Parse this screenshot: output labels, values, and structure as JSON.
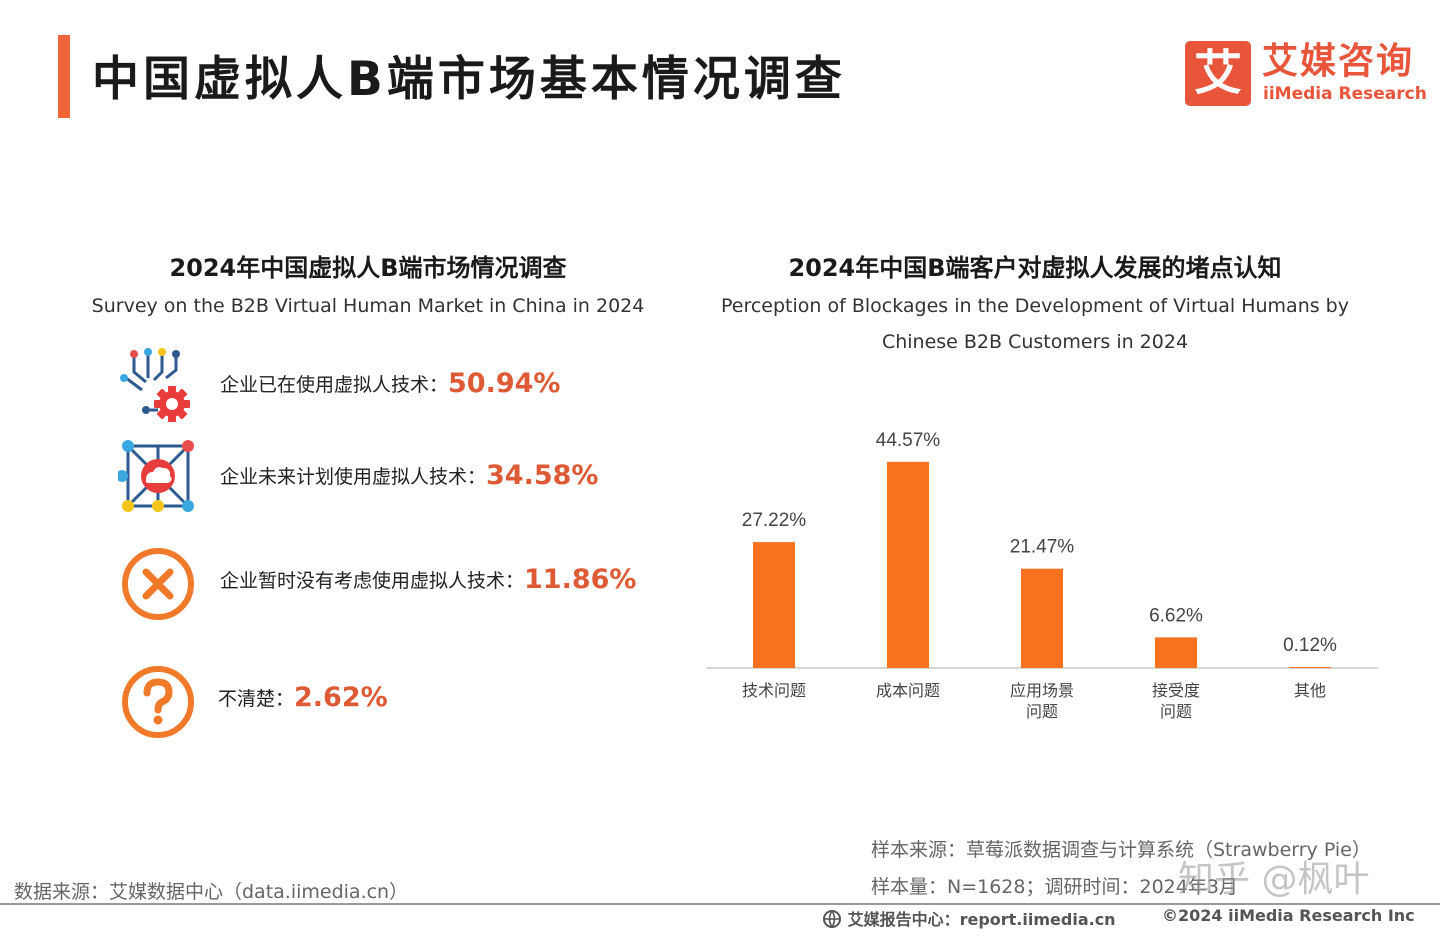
{
  "header": {
    "title": "中国虚拟人B端市场基本情况调查",
    "logo_mark": "艾",
    "logo_cn": "艾媒咨询",
    "logo_en": "iiMedia Research"
  },
  "left_panel": {
    "title": "2024年中国虚拟人B端市场情况调查",
    "subtitle": "Survey on the B2B Virtual Human Market in China in 2024",
    "stats": [
      {
        "label": "企业已在使用虚拟人技术：",
        "value": "50.94%",
        "icon": "tech-gear-icon"
      },
      {
        "label": "企业未来计划使用虚拟人技术：",
        "value": "34.58%",
        "icon": "cloud-network-icon"
      },
      {
        "label": "企业暂时没有考虑使用虚拟人技术：",
        "value": "11.86%",
        "icon": "cross-circle-icon"
      },
      {
        "label": "不清楚：",
        "value": "2.62%",
        "icon": "question-circle-icon"
      }
    ]
  },
  "right_panel": {
    "title": "2024年中国B端客户对虚拟人发展的堵点认知",
    "subtitle_line1": "Perception of Blockages in the Development of Virtual Humans by",
    "subtitle_line2": "Chinese B2B Customers in 2024"
  },
  "chart_data": {
    "type": "bar",
    "title": "2024年中国B端客户对虚拟人发展的堵点认知",
    "categories": [
      [
        "技术问题"
      ],
      [
        "成本问题"
      ],
      [
        "应用场景",
        "问题"
      ],
      [
        "接受度",
        "问题"
      ],
      [
        "其他"
      ]
    ],
    "values": [
      27.22,
      44.57,
      21.47,
      6.62,
      0.12
    ],
    "value_labels": [
      "27.22%",
      "44.57%",
      "21.47%",
      "6.62%",
      "0.12%"
    ],
    "ylim": [
      0,
      48
    ],
    "bar_color": "#f8711e",
    "grid": false,
    "legend": "none"
  },
  "footer": {
    "source_left": "数据来源：艾媒数据中心（data.iimedia.cn）",
    "sample_source": "样本来源：草莓派数据调查与计算系统（Strawberry Pie）",
    "sample_size": "样本量：N=1628；调研时间：2024年3月",
    "report_center": "艾媒报告中心：report.iimedia.cn",
    "copyright": "©2024  iiMedia Research  Inc",
    "watermark": "知乎 @枫叶"
  }
}
